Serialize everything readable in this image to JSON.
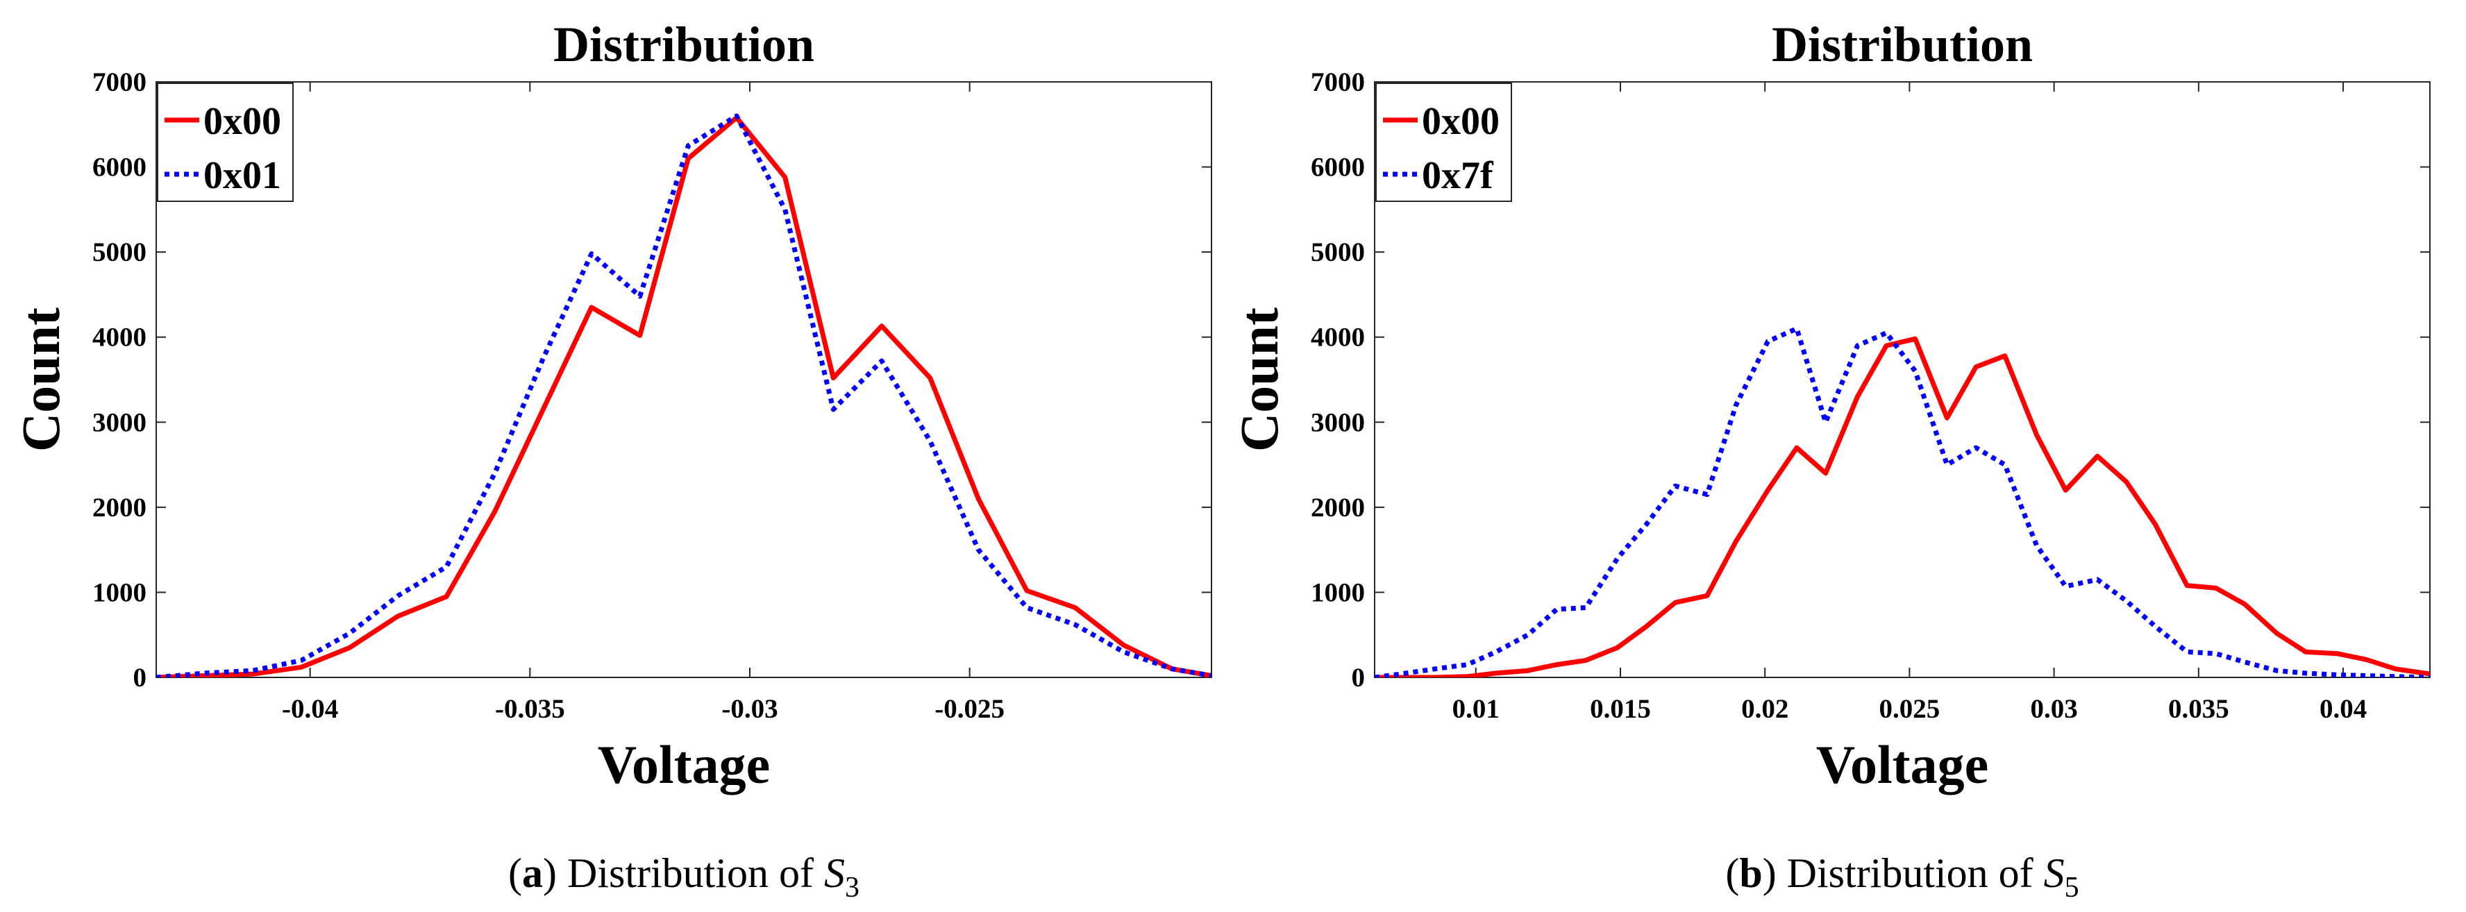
{
  "chart_data": [
    {
      "type": "line",
      "title": "Distribution",
      "xlabel": "Voltage",
      "ylabel": "Count",
      "xlim": [
        -0.0435,
        -0.0195
      ],
      "ylim": [
        0,
        7000
      ],
      "xticks": [
        -0.04,
        -0.035,
        -0.03,
        -0.025
      ],
      "xtick_labels": [
        "-0.04",
        "-0.035",
        "-0.03",
        "-0.025"
      ],
      "yticks": [
        0,
        1000,
        2000,
        3000,
        4000,
        5000,
        6000,
        7000
      ],
      "ytick_labels": [
        "0",
        "1000",
        "2000",
        "3000",
        "4000",
        "5000",
        "6000",
        "7000"
      ],
      "legend_position": "top-left",
      "caption": {
        "label": "a",
        "text": "Distribution of",
        "symbol": "S",
        "subscript": "3"
      },
      "series": [
        {
          "name": "0x00",
          "color": "#ff0000",
          "style": "solid",
          "x": [
            -0.0435,
            -0.0424,
            -0.0413,
            -0.0402,
            -0.0391,
            -0.038,
            -0.0369,
            -0.0358,
            -0.0347,
            -0.0336,
            -0.0325,
            -0.0314,
            -0.0303,
            -0.0292,
            -0.0281,
            -0.027,
            -0.0259,
            -0.0248,
            -0.0237,
            -0.0226,
            -0.0215,
            -0.0204,
            -0.0195
          ],
          "y": [
            0,
            20,
            40,
            120,
            350,
            720,
            950,
            1950,
            3150,
            4350,
            4020,
            6100,
            6580,
            5880,
            3520,
            4130,
            3520,
            2100,
            1020,
            820,
            380,
            100,
            20
          ]
        },
        {
          "name": "0x01",
          "color": "#0000ff",
          "style": "dotted",
          "x": [
            -0.0435,
            -0.0424,
            -0.0413,
            -0.0402,
            -0.0391,
            -0.038,
            -0.0369,
            -0.0358,
            -0.0347,
            -0.0336,
            -0.0325,
            -0.0314,
            -0.0303,
            -0.0292,
            -0.0281,
            -0.027,
            -0.0259,
            -0.0248,
            -0.0237,
            -0.0226,
            -0.0215,
            -0.0204,
            -0.0195
          ],
          "y": [
            0,
            50,
            80,
            200,
            520,
            960,
            1300,
            2400,
            3750,
            4980,
            4480,
            6250,
            6600,
            5500,
            3150,
            3720,
            2780,
            1500,
            820,
            620,
            300,
            100,
            20
          ]
        }
      ]
    },
    {
      "type": "line",
      "title": "Distribution",
      "xlabel": "Voltage",
      "ylabel": "Count",
      "xlim": [
        0.0065,
        0.043
      ],
      "ylim": [
        0,
        7000
      ],
      "xticks": [
        0.01,
        0.015,
        0.02,
        0.025,
        0.03,
        0.035,
        0.04
      ],
      "xtick_labels": [
        "0.01",
        "0.015",
        "0.02",
        "0.025",
        "0.03",
        "0.035",
        "0.04"
      ],
      "yticks": [
        0,
        1000,
        2000,
        3000,
        4000,
        5000,
        6000,
        7000
      ],
      "ytick_labels": [
        "0",
        "1000",
        "2000",
        "3000",
        "4000",
        "5000",
        "6000",
        "7000"
      ],
      "legend_position": "top-left",
      "caption": {
        "label": "b",
        "text": "Distribution of",
        "symbol": "S",
        "subscript": "5"
      },
      "series": [
        {
          "name": "0x00",
          "color": "#ff0000",
          "style": "solid",
          "x": [
            0.0065,
            0.0076,
            0.0086,
            0.0097,
            0.0107,
            0.0118,
            0.0128,
            0.0138,
            0.0149,
            0.0159,
            0.0169,
            0.018,
            0.019,
            0.0201,
            0.0211,
            0.0221,
            0.0232,
            0.0242,
            0.0252,
            0.0263,
            0.0273,
            0.0283,
            0.0294,
            0.0304,
            0.0315,
            0.0325,
            0.0335,
            0.0346,
            0.0356,
            0.0366,
            0.0377,
            0.0387,
            0.0398,
            0.0408,
            0.0418,
            0.043
          ],
          "y": [
            0,
            0,
            0,
            10,
            50,
            80,
            150,
            200,
            350,
            600,
            880,
            960,
            1600,
            2200,
            2700,
            2400,
            3300,
            3900,
            3980,
            3050,
            3650,
            3780,
            2850,
            2200,
            2600,
            2300,
            1800,
            1080,
            1050,
            860,
            520,
            300,
            280,
            210,
            100,
            40
          ]
        },
        {
          "name": "0x7f",
          "color": "#0000ff",
          "style": "dotted",
          "x": [
            0.0065,
            0.0076,
            0.0086,
            0.0097,
            0.0107,
            0.0118,
            0.0128,
            0.0138,
            0.0149,
            0.0159,
            0.0169,
            0.018,
            0.019,
            0.0201,
            0.0211,
            0.0221,
            0.0232,
            0.0242,
            0.0252,
            0.0263,
            0.0273,
            0.0283,
            0.0294,
            0.0304,
            0.0315,
            0.0325,
            0.0335,
            0.0346,
            0.0356,
            0.0366,
            0.0377,
            0.0387,
            0.0398,
            0.0408,
            0.0418,
            0.043
          ],
          "y": [
            0,
            50,
            100,
            150,
            300,
            500,
            800,
            820,
            1400,
            1800,
            2250,
            2150,
            3200,
            3950,
            4100,
            3000,
            3900,
            4050,
            3600,
            2500,
            2700,
            2500,
            1550,
            1070,
            1150,
            900,
            600,
            300,
            280,
            180,
            80,
            50,
            30,
            20,
            10,
            0
          ]
        }
      ]
    }
  ]
}
